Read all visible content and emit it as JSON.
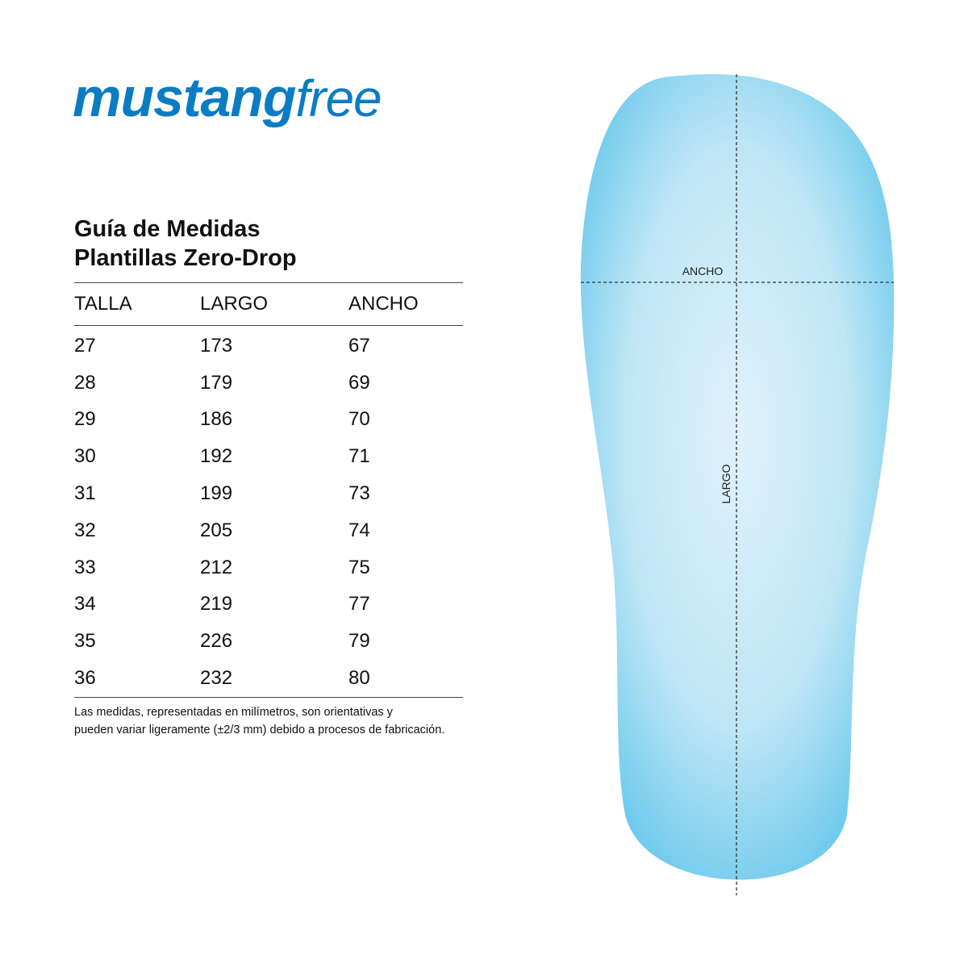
{
  "brand": {
    "bold": "mustang",
    "light": "free",
    "color": "#0a7cc4"
  },
  "title": {
    "line1": "Guía de Medidas",
    "line2": "Plantillas Zero-Drop"
  },
  "table": {
    "headers": [
      "TALLA",
      "LARGO",
      "ANCHO"
    ],
    "rows": [
      [
        "27",
        "173",
        "67"
      ],
      [
        "28",
        "179",
        "69"
      ],
      [
        "29",
        "186",
        "70"
      ],
      [
        "30",
        "192",
        "71"
      ],
      [
        "31",
        "199",
        "73"
      ],
      [
        "32",
        "205",
        "74"
      ],
      [
        "33",
        "212",
        "75"
      ],
      [
        "34",
        "219",
        "77"
      ],
      [
        "35",
        "226",
        "79"
      ],
      [
        "36",
        "232",
        "80"
      ]
    ]
  },
  "note": {
    "line1": "Las medidas, representadas en milímetros, son orientativas y",
    "line2": "pueden variar ligeramente (±2/3 mm) debido a procesos de fabricación."
  },
  "insole": {
    "width_label": "ANCHO",
    "length_label": "LARGO",
    "color": "#6cc9ec"
  }
}
